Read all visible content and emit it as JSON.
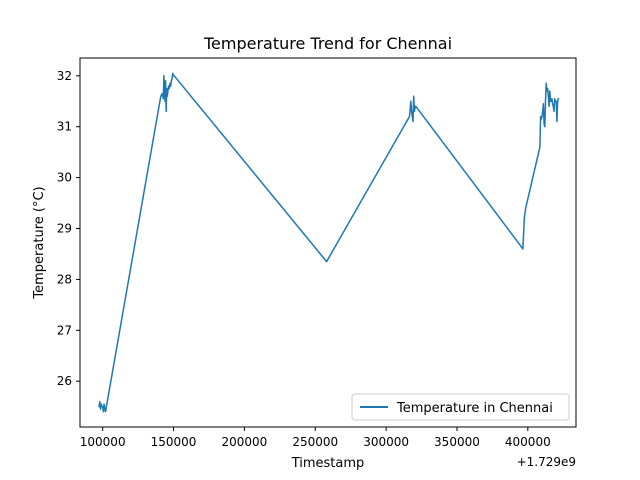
{
  "chart_data": {
    "type": "line",
    "title": "Temperature Trend for Chennai",
    "xlabel": "Timestamp",
    "ylabel": "Temperature (°C)",
    "x_offset_label": "+1.729e9",
    "xlim": [
      84000,
      434000
    ],
    "ylim": [
      25.1,
      32.35
    ],
    "x_ticks": [
      100000,
      150000,
      200000,
      250000,
      300000,
      350000,
      400000
    ],
    "x_tick_labels": [
      "100000",
      "150000",
      "200000",
      "250000",
      "300000",
      "350000",
      "400000"
    ],
    "y_ticks": [
      26,
      27,
      28,
      29,
      30,
      31,
      32
    ],
    "y_tick_labels": [
      "26",
      "27",
      "28",
      "29",
      "30",
      "31",
      "32"
    ],
    "grid": false,
    "legend_position": "lower-right",
    "colors": {
      "series": "#1f77b4"
    },
    "series": [
      {
        "name": "Temperature in Chennai",
        "x": [
          97500,
          98000,
          98500,
          99000,
          99500,
          100000,
          100500,
          101000,
          101500,
          102000,
          141000,
          142000,
          142800,
          143200,
          143600,
          144000,
          144400,
          144800,
          145200,
          145600,
          146000,
          146500,
          147000,
          147500,
          148000,
          148500,
          149000,
          149500,
          150000,
          150500,
          258000,
          316500,
          317500,
          318000,
          318500,
          319000,
          319500,
          320000,
          320500,
          321000,
          396500,
          397500,
          398500,
          408500,
          409000,
          409500,
          410000,
          410500,
          411000,
          411500,
          412000,
          412500,
          413000,
          413500,
          414000,
          414500,
          415000,
          415500,
          416000,
          416500,
          417000,
          417500,
          418000,
          418500,
          419000,
          419500,
          420000,
          420500,
          421000,
          421500
        ],
        "values": [
          25.5,
          25.6,
          25.45,
          25.55,
          25.5,
          25.5,
          25.4,
          25.55,
          25.45,
          25.4,
          31.6,
          31.65,
          31.55,
          32.0,
          31.7,
          31.5,
          31.9,
          31.3,
          31.75,
          31.6,
          31.7,
          31.8,
          31.75,
          31.85,
          31.8,
          31.9,
          31.95,
          32.05,
          32.0,
          32.0,
          28.35,
          31.2,
          31.5,
          31.3,
          31.2,
          31.1,
          31.6,
          31.3,
          31.4,
          31.4,
          28.6,
          29.2,
          29.4,
          30.6,
          31.2,
          31.15,
          31.2,
          31.3,
          31.45,
          31.05,
          31.0,
          31.5,
          31.85,
          31.7,
          31.75,
          31.6,
          31.4,
          31.7,
          31.5,
          31.5,
          31.55,
          31.45,
          31.4,
          31.3,
          31.55,
          31.5,
          31.5,
          31.1,
          31.5,
          31.55
        ]
      }
    ]
  }
}
